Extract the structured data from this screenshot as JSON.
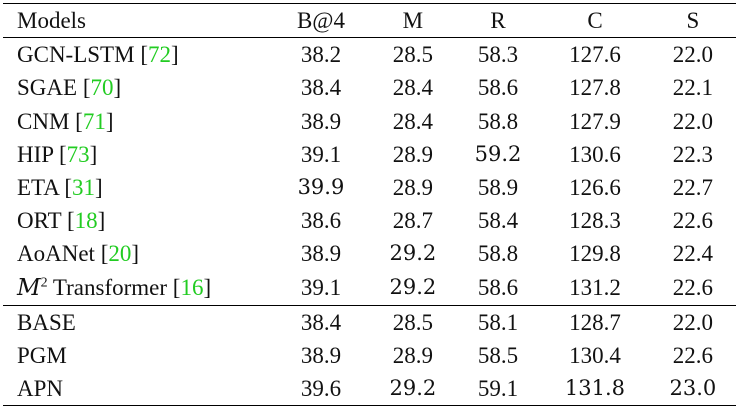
{
  "table": {
    "headers": [
      "Models",
      "B@4",
      "M",
      "R",
      "C",
      "S"
    ],
    "groups": [
      [
        {
          "name": "GCN-LSTM",
          "ref": "72",
          "values": [
            "38.2",
            "28.5",
            "58.3",
            "127.6",
            "22.0"
          ],
          "bold": [
            false,
            false,
            false,
            false,
            false
          ]
        },
        {
          "name": "SGAE",
          "ref": "70",
          "values": [
            "38.4",
            "28.4",
            "58.6",
            "127.8",
            "22.1"
          ],
          "bold": [
            false,
            false,
            false,
            false,
            false
          ]
        },
        {
          "name": "CNM",
          "ref": "71",
          "values": [
            "38.9",
            "28.4",
            "58.8",
            "127.9",
            "22.0"
          ],
          "bold": [
            false,
            false,
            false,
            false,
            false
          ]
        },
        {
          "name": "HIP",
          "ref": "73",
          "values": [
            "39.1",
            "28.9",
            "59.2",
            "130.6",
            "22.3"
          ],
          "bold": [
            false,
            false,
            true,
            false,
            false
          ]
        },
        {
          "name": "ETA",
          "ref": "31",
          "values": [
            "39.9",
            "28.9",
            "58.9",
            "126.6",
            "22.7"
          ],
          "bold": [
            true,
            false,
            false,
            false,
            false
          ]
        },
        {
          "name": "ORT",
          "ref": "18",
          "values": [
            "38.6",
            "28.7",
            "58.4",
            "128.3",
            "22.6"
          ],
          "bold": [
            false,
            false,
            false,
            false,
            false
          ]
        },
        {
          "name": "AoANet",
          "ref": "20",
          "values": [
            "38.9",
            "29.2",
            "58.8",
            "129.8",
            "22.4"
          ],
          "bold": [
            false,
            true,
            false,
            false,
            false
          ]
        },
        {
          "name": "Transformer",
          "prefix": "M",
          "prefix_sup": "2",
          "ref": "16",
          "values": [
            "39.1",
            "29.2",
            "58.6",
            "131.2",
            "22.6"
          ],
          "bold": [
            false,
            true,
            false,
            false,
            false
          ]
        }
      ],
      [
        {
          "name": "BASE",
          "values": [
            "38.4",
            "28.5",
            "58.1",
            "128.7",
            "22.0"
          ],
          "bold": [
            false,
            false,
            false,
            false,
            false
          ]
        },
        {
          "name": "PGM",
          "values": [
            "38.9",
            "28.9",
            "58.5",
            "130.4",
            "22.6"
          ],
          "bold": [
            false,
            false,
            false,
            false,
            false
          ]
        },
        {
          "name": "APN",
          "values": [
            "39.6",
            "29.2",
            "59.1",
            "131.8",
            "23.0"
          ],
          "bold": [
            false,
            true,
            false,
            true,
            true
          ]
        }
      ]
    ],
    "ref_color": "#22cc22"
  }
}
